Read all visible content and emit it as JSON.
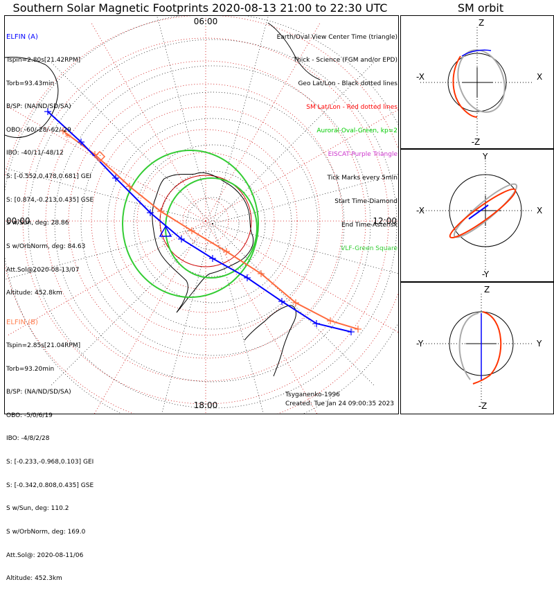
{
  "title": "Southern Solar Magnetic Footprints 2020-08-13 21:00 to 22:30 UTC",
  "sm_title": "SM orbit",
  "clock_labels": {
    "top": "06:00",
    "left": "00:00",
    "right": "12:00",
    "bottom": "18:00"
  },
  "elfin_a": {
    "name": "ELFIN (A)",
    "color": "#0000ff",
    "lines": [
      "Tspin=2.80s[21.42RPM]",
      "Torb=93.43min",
      "B/SP: (NA/ND/SD/SA)",
      "OBO: -60/-28/-62/-29",
      "IBO: -40/11/-48/12",
      "S: [-0.552,0.478,0.681] GEI",
      "S: [0.874,-0.213,0.435] GSE",
      "S w/Sun, deg: 28.86",
      "S w/OrbNorm, deg: 84.63",
      "Att.Sol@2020-08-13/07",
      "Altitude: 452.8km"
    ]
  },
  "elfin_b": {
    "name": "ELFIN (B)",
    "color": "#ff7f50",
    "lines": [
      "Tspin=2.85s[21.04RPM]",
      "Torb=93.20min",
      "B/SP: (NA/ND/SD/SA)",
      "OBO: -5/0/6/19",
      "IBO: -4/8/2/28",
      "S: [-0.233,-0.968,0.103] GEI",
      "S: [-0.342,0.808,0.435] GSE",
      "S w/Sun, deg: 110.2",
      "S w/OrbNorm, deg: 169.0",
      "Att.Sol@: 2020-08-11/06",
      "Altitude: 452.3km"
    ]
  },
  "legend": [
    {
      "text": "Earth/Oval View Center Time (triangle)",
      "color": "#000000"
    },
    {
      "text": "Thick - Science (FGM and/or EPD)",
      "color": "#000000"
    },
    {
      "text": "Geo Lat/Lon - Black dotted lines",
      "color": "#000000"
    },
    {
      "text": "SM Lat/Lon - Red dotted lines",
      "color": "#ff0000"
    },
    {
      "text": "Auroral Oval-Green, kp=2",
      "color": "#00cc00"
    },
    {
      "text": "EISCAT-Purple Triangle",
      "color": "#cc33cc"
    },
    {
      "text": "Tick Marks every 5min",
      "color": "#000000"
    },
    {
      "text": "Start Time-Diamond",
      "color": "#000000"
    },
    {
      "text": "End Time-Asterisk",
      "color": "#000000"
    },
    {
      "text": "VLF-Green Square",
      "color": "#33cc33"
    }
  ],
  "credit": {
    "author": "Tsyganenko-1996",
    "created": "Created: Tue Jan 24 09:00:35 2023"
  },
  "sm_panels": [
    {
      "top": "Z",
      "bottom": "-Z",
      "left": "-X",
      "right": "X"
    },
    {
      "top": "Y",
      "bottom": "-Y",
      "left": "-X",
      "right": "X"
    },
    {
      "top": "Z",
      "bottom": "-Z",
      "left": "-Y",
      "right": "Y"
    }
  ],
  "chart_data": {
    "type": "scatter",
    "description_free": true,
    "coordinate_system": "polar plot of southern magnetic footprints, SM latitude rings every 10 deg, MLT clock labels",
    "mlt_labels": [
      "00:00",
      "06:00",
      "12:00",
      "18:00"
    ],
    "series": [
      {
        "name": "ELFIN (A)",
        "color": "#0000ff"
      },
      {
        "name": "ELFIN (B)",
        "color": "#ff7f50"
      }
    ],
    "colors": {
      "orbit_a": "#0000ff",
      "orbit_b": "#ff6a3d",
      "auroral_oval": "#33cc33",
      "sm_grid": "#cc0000",
      "geo_grid": "#000000",
      "orbit_other": "#aaaaaa"
    }
  }
}
